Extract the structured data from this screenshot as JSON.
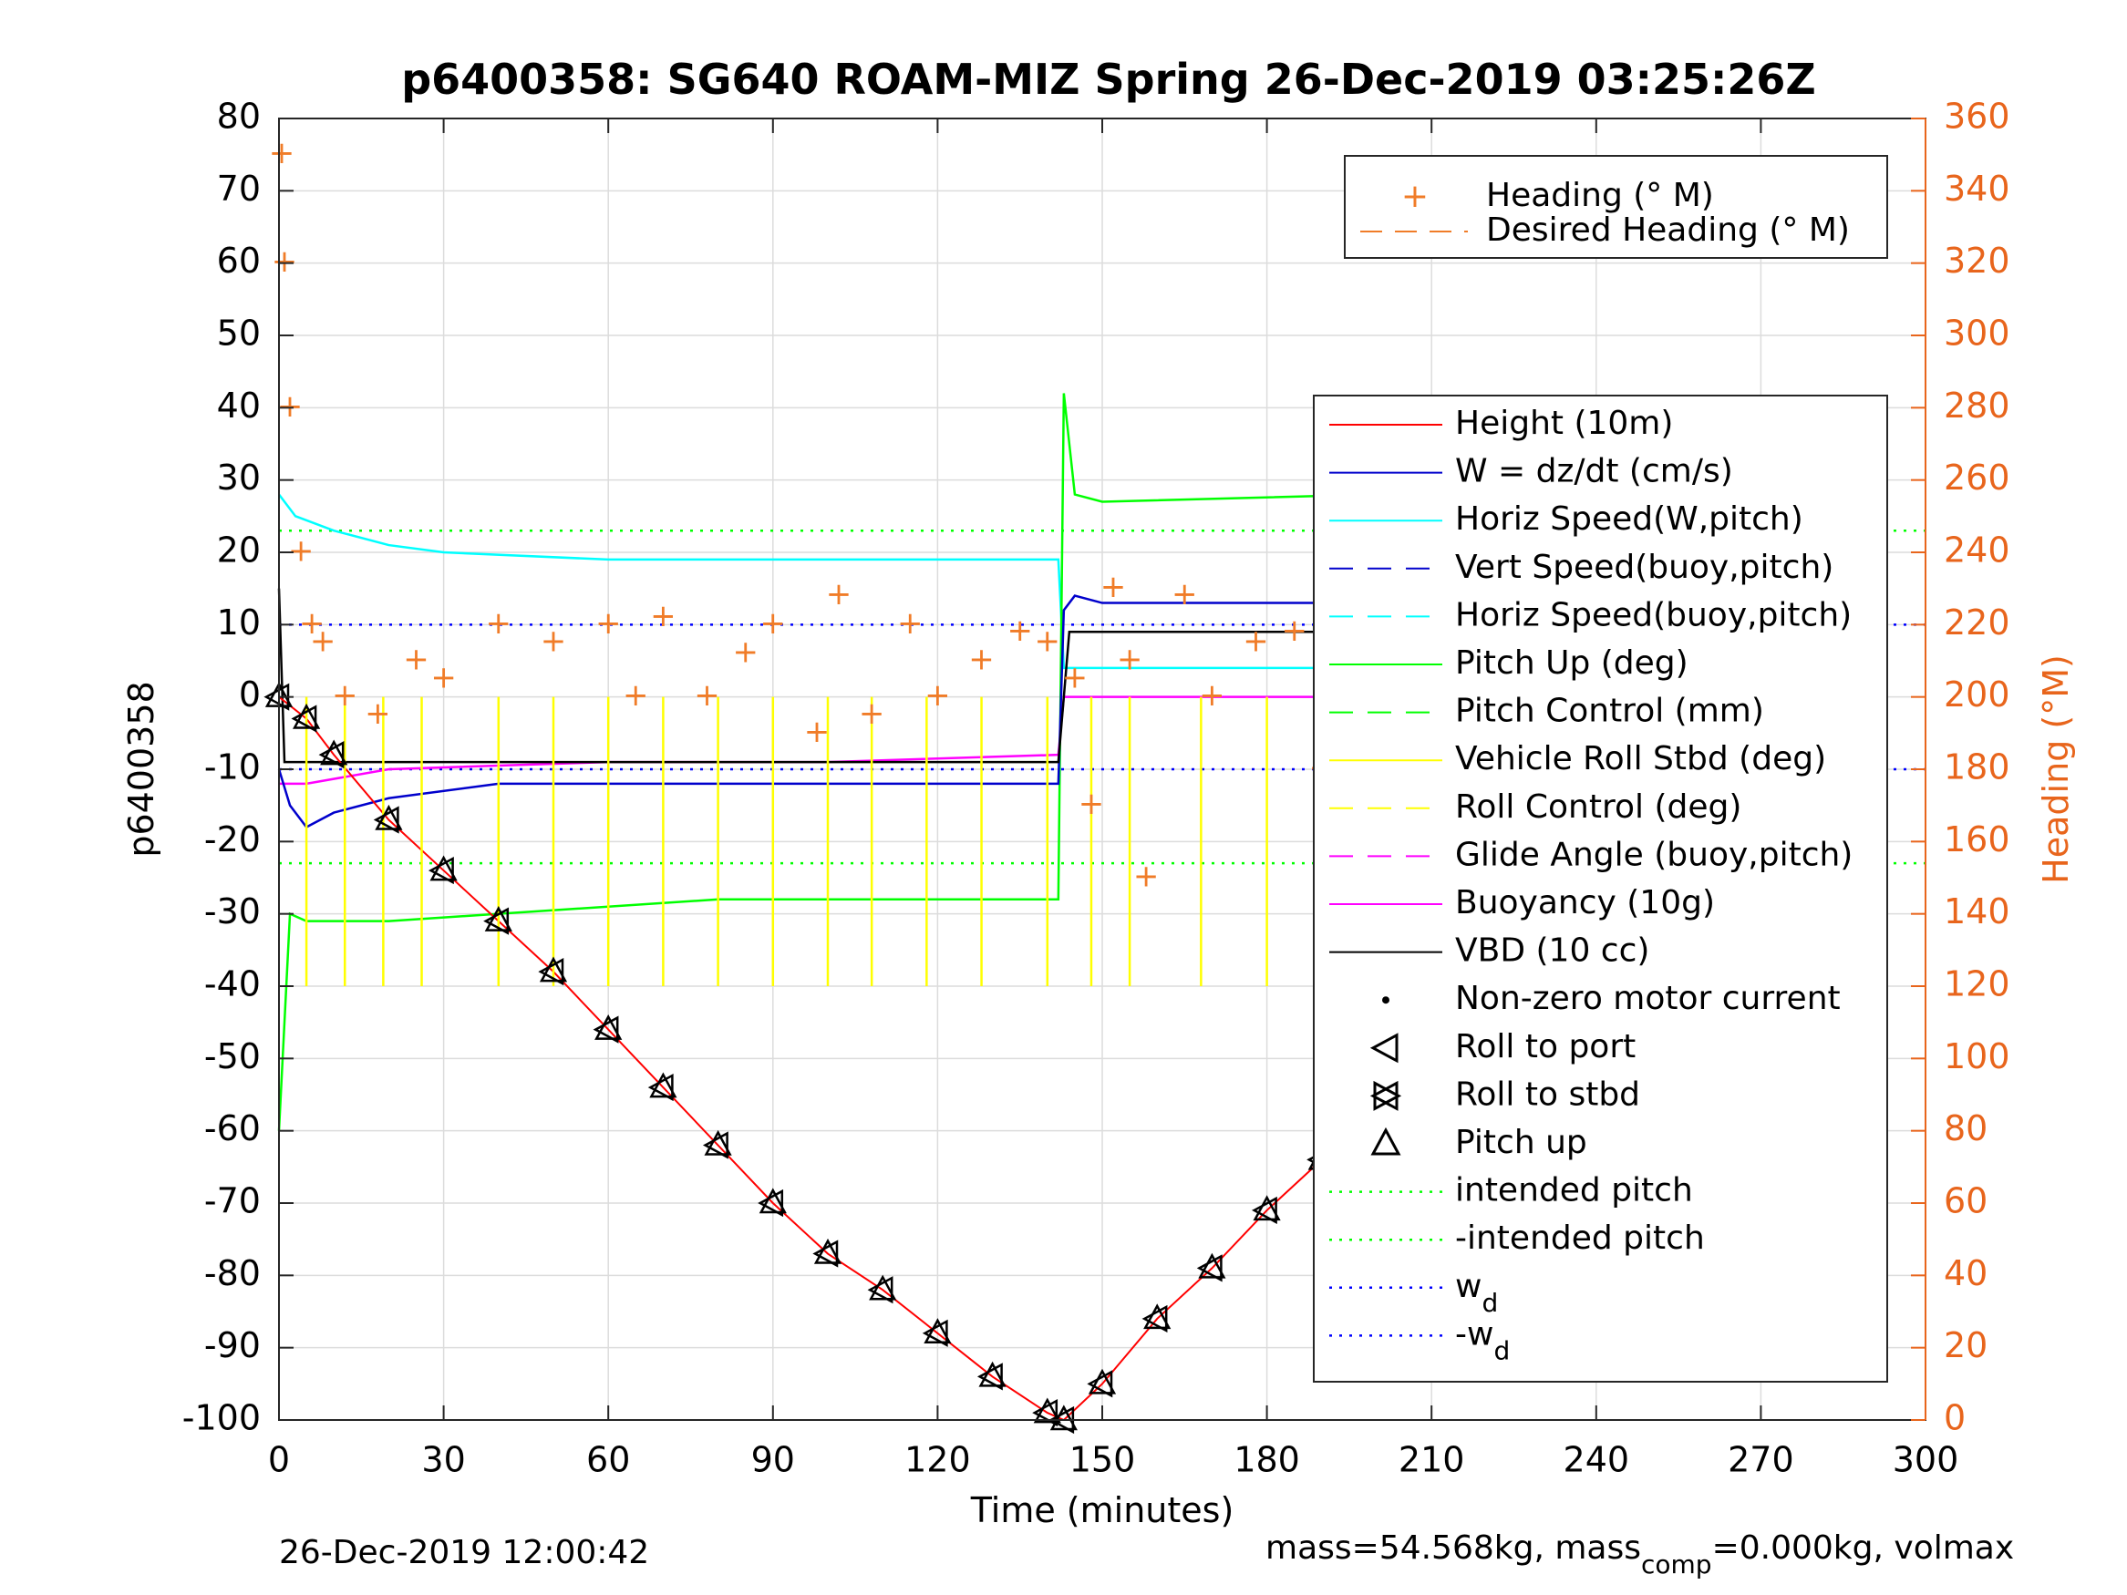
{
  "chart_data": {
    "type": "line",
    "title": "p6400358: SG640 ROAM-MIZ Spring 26-Dec-2019 03:25:26Z",
    "xlabel": "Time (minutes)",
    "ylabel": "p6400358",
    "ylabel_right": "Heading (°M)",
    "xlim": [
      0,
      300
    ],
    "ylim": [
      -100,
      80
    ],
    "ylim_right": [
      0,
      360
    ],
    "x_ticks": [
      "0",
      "30",
      "60",
      "90",
      "120",
      "150",
      "180",
      "210",
      "240",
      "270",
      "300"
    ],
    "y_ticks": [
      "80",
      "70",
      "60",
      "50",
      "40",
      "30",
      "20",
      "10",
      "0",
      "-10",
      "-20",
      "-30",
      "-40",
      "-50",
      "-60",
      "-70",
      "-80",
      "-90",
      "-100"
    ],
    "y_ticks_right": [
      "360",
      "340",
      "320",
      "300",
      "280",
      "260",
      "240",
      "220",
      "200",
      "180",
      "160",
      "140",
      "120",
      "100",
      "80",
      "60",
      "40",
      "20",
      "0"
    ],
    "grid": true,
    "legend_top": {
      "position": "top-right",
      "entries": [
        "Heading (° M)",
        "Desired Heading (° M)"
      ]
    },
    "legend_main": {
      "position": "right",
      "entries": [
        "Height (10m)",
        "W = dz/dt (cm/s)",
        "Horiz Speed(W,pitch)",
        "Vert Speed(buoy,pitch)",
        "Horiz Speed(buoy,pitch)",
        "Pitch Up (deg)",
        "Pitch Control (mm)",
        "Vehicle Roll Stbd (deg)",
        "Roll Control (deg)",
        "Glide Angle (buoy,pitch)",
        "Buoyancy (10g)",
        "VBD (10 cc)",
        "Non-zero motor current",
        "Roll to port",
        "Roll to stbd",
        "Pitch up",
        "intended pitch",
        "-intended pitch",
        "w",
        "-w"
      ],
      "subscript": "d"
    },
    "colors": {
      "height": "#FF0000",
      "w": "#0000CC",
      "horiz_speed": "#00FFFF",
      "pitch": "#00FF00",
      "roll": "#FFFF00",
      "glide": "#FF00FF",
      "vbd": "#000000",
      "heading": "#F07C28",
      "intended": "#00FF00",
      "wd": "#0000FF"
    },
    "series": [
      {
        "key": "height",
        "x": [
          0,
          5,
          10,
          20,
          30,
          40,
          50,
          60,
          70,
          80,
          90,
          100,
          110,
          120,
          130,
          140,
          143,
          150,
          160,
          170,
          180,
          190,
          200,
          210,
          220,
          230,
          240,
          250,
          260,
          270,
          282
        ],
        "y": [
          0,
          -3,
          -8,
          -17,
          -24,
          -31,
          -38,
          -46,
          -54,
          -62,
          -70,
          -77,
          -82,
          -88,
          -94,
          -99,
          -100,
          -95,
          -86,
          -79,
          -71,
          -64,
          -56,
          -48,
          -41,
          -34,
          -26,
          -19,
          -11,
          -5,
          -1
        ]
      },
      {
        "key": "w",
        "x": [
          0,
          2,
          5,
          10,
          20,
          40,
          80,
          120,
          142,
          143,
          145,
          150,
          200,
          240,
          270,
          282
        ],
        "y": [
          -10,
          -15,
          -18,
          -16,
          -14,
          -12,
          -12,
          -12,
          -12,
          12,
          14,
          13,
          13,
          11,
          10,
          9
        ]
      },
      {
        "key": "horiz_speed",
        "x": [
          0,
          3,
          10,
          20,
          30,
          60,
          100,
          130,
          142,
          143,
          160,
          200,
          250,
          282
        ],
        "y": [
          28,
          25,
          23,
          21,
          20,
          19,
          19,
          19,
          19,
          4,
          4,
          4,
          4,
          4
        ]
      },
      {
        "key": "pitch",
        "x": [
          0,
          2,
          5,
          20,
          40,
          80,
          120,
          142,
          143,
          145,
          150,
          200,
          250,
          282
        ],
        "y": [
          -60,
          -30,
          -31,
          -31,
          -30,
          -28,
          -28,
          -28,
          42,
          28,
          27,
          28,
          27,
          27
        ]
      },
      {
        "key": "glide",
        "x": [
          0,
          5,
          20,
          60,
          100,
          142,
          143,
          200,
          282
        ],
        "y": [
          -12,
          -12,
          -10,
          -9,
          -9,
          -8,
          0,
          0,
          0
        ]
      },
      {
        "key": "vbd",
        "x": [
          0,
          1,
          3,
          100,
          142,
          144,
          200,
          282
        ],
        "y": [
          15,
          -9,
          -9,
          -9,
          -9,
          9,
          9,
          9
        ]
      },
      {
        "key": "heading_deg",
        "x": [
          0.5,
          1,
          2,
          4,
          6,
          8,
          12,
          18,
          25,
          30,
          40,
          50,
          60,
          65,
          70,
          78,
          85,
          90,
          98,
          102,
          108,
          115,
          120,
          128,
          135,
          140,
          145,
          148,
          152,
          155,
          158,
          165,
          170,
          178,
          185,
          190,
          200,
          210,
          220,
          230,
          240,
          250,
          260,
          265,
          275,
          280
        ],
        "y": [
          350,
          320,
          280,
          240,
          220,
          215,
          200,
          195,
          210,
          205,
          220,
          215,
          220,
          200,
          222,
          200,
          212,
          220,
          190,
          228,
          195,
          220,
          200,
          210,
          218,
          215,
          205,
          170,
          230,
          210,
          150,
          228,
          200,
          215,
          218,
          180,
          215,
          218,
          225,
          210,
          220,
          215,
          212,
          200,
          150,
          210
        ]
      }
    ],
    "intended_pitch": 23,
    "wd": 10
  },
  "footer": {
    "timestamp": "26-Dec-2019 12:00:42",
    "mass_a": "mass=54.568kg, mass",
    "mass_sub": "comp",
    "mass_b": "=0.000kg, volmax"
  }
}
